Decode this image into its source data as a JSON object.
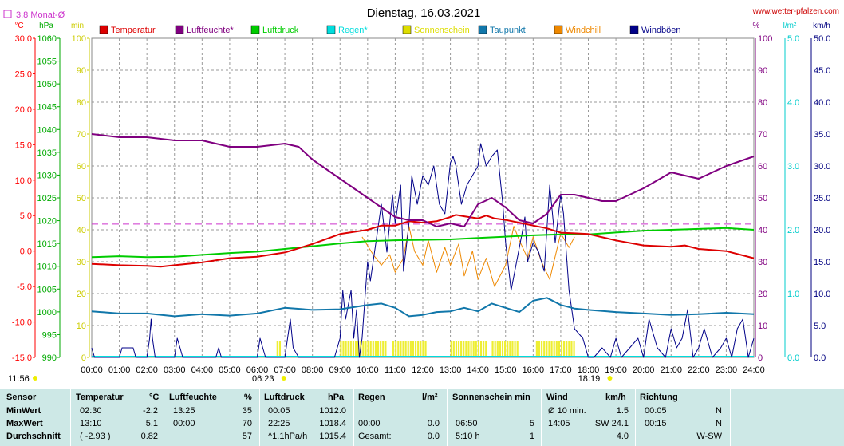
{
  "header": {
    "title": "Dienstag, 16.03.2021",
    "site": "www.wetter-pfalzen.com",
    "monthly_avg_label": "3.8 Monat-Ø",
    "legend_box_color": "#cc33cc"
  },
  "chart_data": {
    "type": "line",
    "title": "Dienstag, 16.03.2021",
    "x_tick_labels": [
      "00:00",
      "01:00",
      "02:00",
      "03:00",
      "04:00",
      "05:00",
      "06:00",
      "07:00",
      "08:00",
      "09:00",
      "10:00",
      "11:00",
      "12:00",
      "13:00",
      "14:00",
      "15:00",
      "16:00",
      "17:00",
      "18:00",
      "19:00",
      "20:00",
      "21:00",
      "22:00",
      "23:00",
      "24:00"
    ],
    "xlim_hours": [
      0,
      24
    ],
    "sunrise_label": "06:23",
    "sunset_label": "18:19",
    "sunrise_hour": 6.383,
    "sunset_hour": 18.317,
    "current_time_label": "11:56",
    "monthly_avg_temp": 3.8,
    "axes": {
      "temp_c": {
        "unit": "°C",
        "range": [
          -15,
          30
        ],
        "ticks": [
          "30.0",
          "25.0",
          "20.0",
          "15.0",
          "10.0",
          "5.0",
          "0.0",
          "-5.0",
          "-10.0",
          "-15.0"
        ],
        "color": "#ff0000"
      },
      "pressure_hpa": {
        "unit": "hPa",
        "range": [
          990,
          1060
        ],
        "ticks": [
          "1060",
          "1055",
          "1050",
          "1045",
          "1040",
          "1035",
          "1030",
          "1025",
          "1020",
          "1015",
          "1010",
          "1005",
          "1000",
          "995",
          "990"
        ],
        "color": "#00cc00"
      },
      "sunshine_min": {
        "unit": "min",
        "range": [
          0,
          100
        ],
        "ticks": [
          "100",
          "90",
          "80",
          "70",
          "60",
          "50",
          "40",
          "30",
          "20",
          "10",
          "0"
        ],
        "color": "#dddd00"
      },
      "humidity_pct": {
        "unit": "%",
        "range": [
          0,
          100
        ],
        "ticks": [
          "100",
          "90",
          "80",
          "70",
          "60",
          "50",
          "40",
          "30",
          "20",
          "10",
          "0"
        ],
        "color": "#800080"
      },
      "rain_lm2": {
        "unit": "l/m²",
        "range": [
          0,
          5
        ],
        "ticks": [
          "5.0",
          "4.0",
          "3.0",
          "2.0",
          "1.0",
          "0.0"
        ],
        "color": "#00cccc"
      },
      "wind_kmh": {
        "unit": "km/h",
        "range": [
          0,
          50
        ],
        "ticks": [
          "50.0",
          "45.0",
          "40.0",
          "35.0",
          "30.0",
          "25.0",
          "20.0",
          "15.0",
          "10.0",
          "5.0",
          "0.0"
        ],
        "color": "#000080"
      }
    },
    "series": [
      {
        "name": "Temperatur",
        "color": "#dd0000",
        "axis": "temp_c",
        "x": [
          0,
          1,
          2,
          2.5,
          3,
          4,
          5,
          6,
          7,
          8,
          9,
          10,
          10.5,
          11,
          11.5,
          12,
          12.5,
          13,
          13.2,
          13.5,
          14,
          14.3,
          14.6,
          15,
          15.5,
          16,
          16.5,
          17,
          17.5,
          18,
          19,
          20,
          21,
          21.5,
          22,
          23,
          24
        ],
        "y": [
          -1.8,
          -2.0,
          -2.1,
          -2.2,
          -2.0,
          -1.6,
          -1.0,
          -0.8,
          -0.2,
          1.0,
          2.4,
          3.0,
          3.6,
          3.6,
          4.2,
          4.0,
          4.2,
          4.8,
          5.1,
          4.9,
          4.6,
          5.0,
          4.6,
          4.4,
          4.0,
          3.6,
          3.2,
          2.6,
          2.5,
          2.4,
          1.5,
          0.8,
          0.6,
          0.8,
          0.3,
          0.0,
          -1.0
        ]
      },
      {
        "name": "Luftfeuchte*",
        "color": "#800080",
        "axis": "humidity_pct",
        "x": [
          0,
          1,
          2,
          3,
          4,
          5,
          6,
          7,
          7.5,
          8,
          9,
          10,
          10.5,
          11,
          11.5,
          12,
          12.5,
          13,
          13.5,
          14,
          14.5,
          15,
          15.5,
          16,
          16.5,
          17,
          17.5,
          18,
          18.5,
          19,
          20,
          21,
          21.5,
          22,
          23,
          24
        ],
        "y": [
          70,
          69,
          69,
          68,
          68,
          66,
          66,
          67,
          66,
          62,
          56,
          50,
          47,
          44,
          43,
          43,
          41,
          42,
          41,
          48,
          50,
          47,
          43,
          42,
          45,
          51,
          51,
          50,
          49,
          49,
          53,
          58,
          57,
          56,
          60,
          63
        ]
      },
      {
        "name": "Luftdruck",
        "color": "#00cc00",
        "axis": "pressure_hpa",
        "x": [
          0,
          1,
          2,
          3,
          4,
          5,
          6,
          7,
          8,
          9,
          10,
          11,
          12,
          13,
          14,
          15,
          16,
          17,
          18,
          19,
          20,
          21,
          22,
          23,
          24
        ],
        "y": [
          1012.0,
          1012.2,
          1012.0,
          1012.1,
          1012.5,
          1012.9,
          1013.2,
          1013.8,
          1014.4,
          1015.0,
          1015.5,
          1015.7,
          1015.8,
          1015.9,
          1016.2,
          1016.5,
          1016.8,
          1017.0,
          1017.0,
          1017.4,
          1017.8,
          1018.0,
          1018.2,
          1018.4,
          1018.0
        ]
      },
      {
        "name": "Taupunkt",
        "color": "#1177aa",
        "axis": "temp_c",
        "x": [
          0,
          1,
          2,
          3,
          4,
          5,
          6,
          7,
          8,
          9,
          10,
          10.5,
          11,
          11.5,
          12,
          12.5,
          13,
          13.5,
          14,
          14.5,
          15,
          15.5,
          16,
          16.5,
          17,
          17.5,
          18,
          19,
          20,
          21,
          22,
          22.5,
          23,
          24
        ],
        "y": [
          -8.5,
          -8.8,
          -8.8,
          -9.2,
          -8.9,
          -9.1,
          -8.8,
          -8.0,
          -8.3,
          -8.2,
          -7.6,
          -7.4,
          -8.0,
          -9.2,
          -9.0,
          -8.6,
          -8.5,
          -8.0,
          -8.5,
          -7.4,
          -8.0,
          -8.6,
          -7.0,
          -6.6,
          -7.6,
          -8.1,
          -8.3,
          -8.6,
          -8.8,
          -9.0,
          -8.9,
          -8.8,
          -8.7,
          -8.9
        ]
      },
      {
        "name": "Windchill",
        "color": "#ee8800",
        "axis": "temp_c",
        "x": [
          9.8,
          10.2,
          10.5,
          10.8,
          11.0,
          11.3,
          11.5,
          11.7,
          12.0,
          12.2,
          12.5,
          12.8,
          13.0,
          13.3,
          13.5,
          13.8,
          14.0,
          14.3,
          14.6,
          15.0,
          15.3,
          15.5,
          15.8,
          16.0,
          16.3,
          16.6,
          17.0,
          17.3,
          17.5
        ],
        "y": [
          2.0,
          -0.5,
          -2.0,
          -0.5,
          -3.0,
          -1.0,
          3.5,
          0.0,
          -2.0,
          1.5,
          -3.0,
          0.5,
          -2.0,
          1.0,
          -3.5,
          0.0,
          -4.0,
          -1.0,
          -5.0,
          -2.0,
          3.5,
          1.5,
          -1.0,
          2.0,
          -1.5,
          -4.0,
          2.5,
          0.5,
          2.0
        ]
      },
      {
        "name": "Windböen",
        "color": "#000088",
        "axis": "wind_kmh",
        "x": [
          0,
          0.1,
          0.2,
          0.5,
          1.0,
          1.1,
          1.5,
          1.6,
          2.0,
          2.1,
          2.15,
          2.2,
          2.3,
          3.0,
          3.1,
          3.2,
          3.3,
          4.0,
          4.5,
          4.6,
          4.7,
          5.0,
          6.0,
          6.1,
          6.2,
          6.3,
          7.0,
          7.1,
          7.2,
          7.3,
          7.5,
          8.0,
          8.8,
          9.0,
          9.1,
          9.2,
          9.4,
          9.5,
          9.6,
          9.7,
          9.8,
          10.0,
          10.1,
          10.3,
          10.5,
          10.7,
          10.9,
          11.0,
          11.2,
          11.3,
          11.5,
          11.6,
          11.8,
          12.0,
          12.2,
          12.4,
          12.6,
          12.8,
          13.0,
          13.1,
          13.2,
          13.4,
          13.6,
          13.8,
          14.0,
          14.1,
          14.3,
          14.5,
          14.7,
          14.9,
          15.0,
          15.2,
          15.4,
          15.6,
          15.7,
          15.8,
          16.0,
          16.2,
          16.4,
          16.6,
          16.8,
          17.0,
          17.1,
          17.3,
          17.5,
          17.8,
          18.0,
          18.2,
          18.5,
          18.8,
          19.0,
          19.2,
          19.5,
          19.8,
          20.0,
          20.2,
          20.5,
          20.8,
          21.0,
          21.2,
          21.4,
          21.6,
          21.8,
          22.0,
          22.2,
          22.5,
          22.8,
          23.0,
          23.2,
          23.4,
          23.6,
          23.8,
          24.0
        ],
        "y": [
          1.5,
          0,
          0,
          0,
          0,
          1.5,
          1.5,
          0,
          0,
          3.0,
          6.0,
          3.0,
          0,
          0,
          3.0,
          1.5,
          0,
          0,
          0,
          1.5,
          0,
          0,
          0,
          3.0,
          1.5,
          0,
          0,
          3.0,
          6.0,
          1.5,
          0,
          0,
          0,
          3.0,
          10.5,
          6.0,
          10.5,
          3.0,
          7.5,
          0,
          3.0,
          15.0,
          12.0,
          18.0,
          24.0,
          16.5,
          25.5,
          21.0,
          27.0,
          13.5,
          21.0,
          28.5,
          24.0,
          28.5,
          27.0,
          30.0,
          24.0,
          22.5,
          30.5,
          31.5,
          30.0,
          24.0,
          27.0,
          28.5,
          30.0,
          33.5,
          30.0,
          31.5,
          32.5,
          24.0,
          18.0,
          10.5,
          15.0,
          19.5,
          22.0,
          15.0,
          18.0,
          16.5,
          13.5,
          27.0,
          18.0,
          25.5,
          22.5,
          10.5,
          4.5,
          3.0,
          0,
          0,
          1.5,
          0,
          3.0,
          0,
          1.5,
          3.0,
          0,
          6.0,
          1.5,
          0,
          4.5,
          1.5,
          3.0,
          7.5,
          0,
          1.5,
          4.5,
          0,
          1.5,
          3.0,
          0,
          4.5,
          6.0,
          0,
          3.0
        ]
      }
    ],
    "legend_entries": [
      {
        "name": "Regen*",
        "color": "#00dddd"
      },
      {
        "name": "Sonnenschein",
        "color": "#dddd00"
      }
    ],
    "legend_placement": "top",
    "grid": true
  },
  "stats": {
    "headers": {
      "sensor": "Sensor",
      "temp": "Temperatur",
      "temp_unit": "°C",
      "hum": "Luftfeuchte",
      "hum_unit": "%",
      "press": "Luftdruck",
      "press_unit": "hPa",
      "rain": "Regen",
      "rain_unit": "l/m²",
      "sun": "Sonnenschein min",
      "wind": "Wind",
      "wind_unit": "km/h",
      "dir": "Richtung"
    },
    "rows": [
      {
        "label": "MinWert",
        "temp_time": "02:30",
        "temp_val": "-2.2",
        "hum_time": "13:25",
        "hum_val": "35",
        "press_time": "00:05",
        "press_val": "1012.0",
        "rain_time": "",
        "rain_val": "",
        "sun_time": "",
        "sun_val": "",
        "wind_time": "Ø 10 min.",
        "wind_val": "1.5",
        "dir_time": "00:05",
        "dir_val": "N"
      },
      {
        "label": "MaxWert",
        "temp_time": "13:10",
        "temp_val": "5.1",
        "hum_time": "00:00",
        "hum_val": "70",
        "press_time": "22:25",
        "press_val": "1018.4",
        "rain_time": "00:00",
        "rain_val": "0.0",
        "sun_time": "06:50",
        "sun_val": "5",
        "wind_time": "14:05",
        "wind_val": "SW 24.1",
        "dir_time": "00:15",
        "dir_val": "N"
      },
      {
        "label": "Durchschnitt",
        "temp_time": "( -2.93 )",
        "temp_val": "0.82",
        "hum_time": "",
        "hum_val": "57",
        "press_time": "^1.1hPa/h",
        "press_val": "1015.4",
        "rain_time": "Gesamt:",
        "rain_val": "0.0",
        "sun_time": "5:10 h",
        "sun_val": "1",
        "wind_time": "",
        "wind_val": "4.0",
        "dir_time": "",
        "dir_val": "W-SW"
      }
    ]
  }
}
